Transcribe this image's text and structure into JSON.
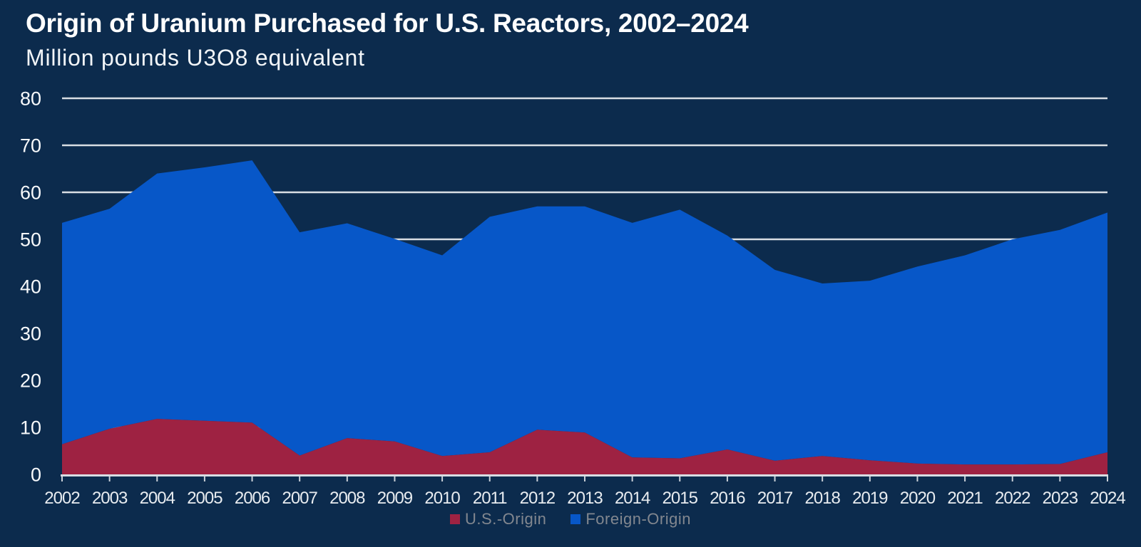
{
  "title": "Origin of Uranium Purchased for U.S. Reactors, 2002–2024",
  "subtitle": "Million pounds U3O8 equivalent",
  "colors": {
    "background": "#0C2B4D",
    "us_origin": "#9E2242",
    "foreign_origin": "#0757C8",
    "gridline": "#D9DEE4",
    "axis_line": "#D8DDE3",
    "tick_mark": "#CBD1D8",
    "y_label": "#F7F9FB",
    "x_label": "#E8ECF0",
    "title_text": "#FFFFFF",
    "subtitle_text": "#F2F5F8",
    "legend_text": "#82878F"
  },
  "legend": {
    "items": [
      {
        "label": "U.S.-Origin",
        "color_key": "us_origin"
      },
      {
        "label": "Foreign-Origin",
        "color_key": "foreign_origin"
      }
    ]
  },
  "chart_data": {
    "type": "area",
    "stacked": true,
    "title": "Origin of Uranium Purchased for U.S. Reactors, 2002–2024",
    "subtitle": "Million pounds U3O8 equivalent",
    "xlabel": "",
    "ylabel": "Million pounds U3O8 equivalent",
    "categories": [
      2002,
      2003,
      2004,
      2005,
      2006,
      2007,
      2008,
      2009,
      2010,
      2011,
      2012,
      2013,
      2014,
      2015,
      2016,
      2017,
      2018,
      2019,
      2020,
      2021,
      2022,
      2023,
      2024
    ],
    "series": [
      {
        "name": "U.S.-Origin",
        "values": [
          6.4,
          9.7,
          11.8,
          11.4,
          11.0,
          4.0,
          7.7,
          7.0,
          3.9,
          4.7,
          9.5,
          8.9,
          3.6,
          3.4,
          5.3,
          2.9,
          3.9,
          3.0,
          2.3,
          2.1,
          2.1,
          2.2,
          4.7
        ]
      },
      {
        "name": "Foreign-Origin",
        "values": [
          47.1,
          46.8,
          52.2,
          53.9,
          55.8,
          47.5,
          45.7,
          43.1,
          42.7,
          50.1,
          47.5,
          48.1,
          49.9,
          52.9,
          45.5,
          40.6,
          36.7,
          38.2,
          41.9,
          44.5,
          47.9,
          49.8,
          51.0
        ]
      }
    ],
    "stacked_totals": [
      53.5,
      56.5,
      64.0,
      65.3,
      66.8,
      51.5,
      53.4,
      50.1,
      46.6,
      54.8,
      57.0,
      57.0,
      53.5,
      56.3,
      50.8,
      43.5,
      40.6,
      41.2,
      44.2,
      46.6,
      50.0,
      52.0,
      55.7
    ],
    "ylim": [
      0,
      80
    ],
    "y_ticks": [
      0,
      10,
      20,
      30,
      40,
      50,
      60,
      70,
      80
    ],
    "grid": true,
    "legend_position": "bottom"
  }
}
